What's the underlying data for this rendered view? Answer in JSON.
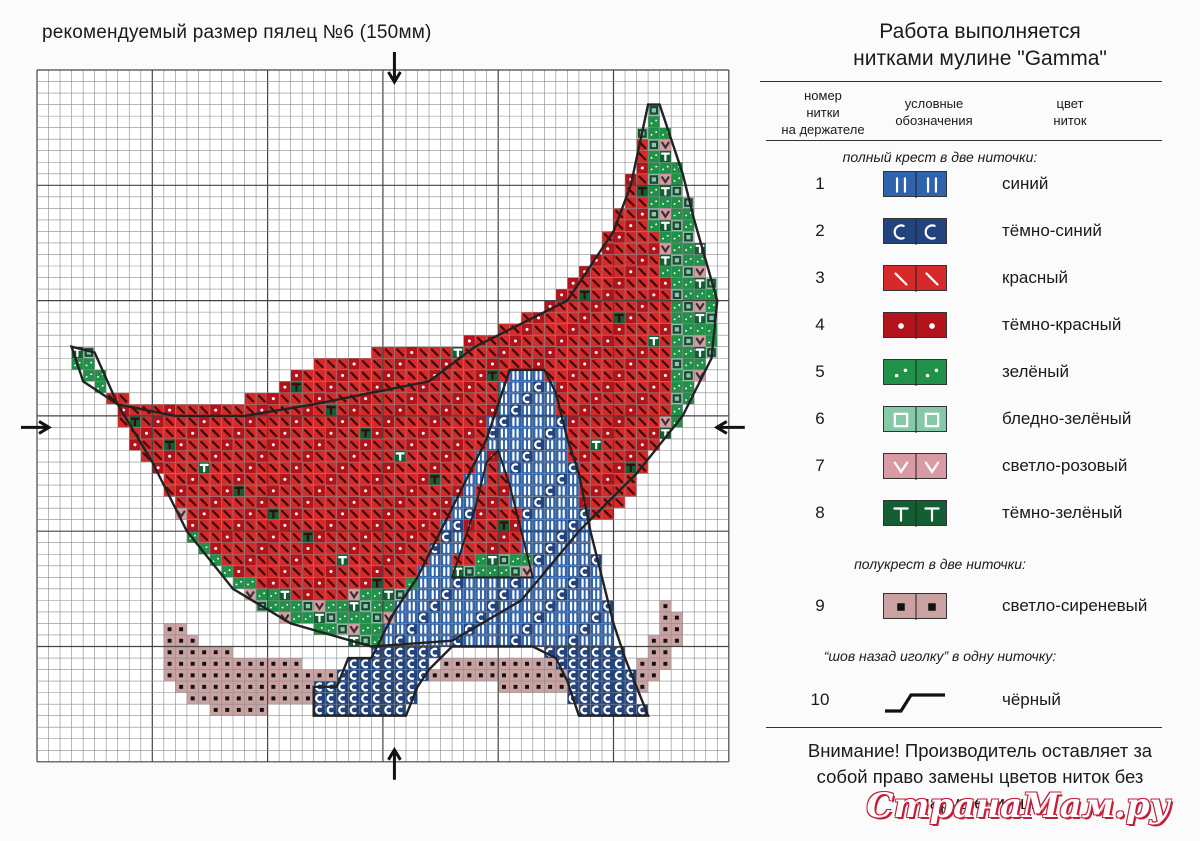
{
  "hoop_note": "рекомендуемый размер пялец №6 (150мм)",
  "legend": {
    "title_line1": "Работа выполняется",
    "title_line2": "нитками мулине \"Gamma\"",
    "headers": {
      "number": [
        "номер",
        "нитки",
        "на держателе"
      ],
      "symbol": [
        "условные",
        "обозначения"
      ],
      "color": [
        "цвет",
        "ниток"
      ]
    },
    "section_full": "полный крест в две ниточки:",
    "section_half": "полукрест в две ниточки:",
    "section_back": "“шов назад иголку” в одну ниточку:",
    "threads": [
      {
        "num": "1",
        "name": "синий",
        "bg": "#2f63ad",
        "symbol": "bar"
      },
      {
        "num": "2",
        "name": "тёмно-синий",
        "bg": "#21437e",
        "symbol": "moon"
      },
      {
        "num": "3",
        "name": "красный",
        "bg": "#d62a2a",
        "symbol": "slash"
      },
      {
        "num": "4",
        "name": "тёмно-красный",
        "bg": "#b3141c",
        "symbol": "dot"
      },
      {
        "num": "5",
        "name": "зелёный",
        "bg": "#219049",
        "symbol": "stars"
      },
      {
        "num": "6",
        "name": "бледно-зелёный",
        "bg": "#86c9a8",
        "symbol": "square"
      },
      {
        "num": "7",
        "name": "светло-розовый",
        "bg": "#d99aa3",
        "symbol": "vee"
      },
      {
        "num": "8",
        "name": "тёмно-зелёный",
        "bg": "#145e34",
        "symbol": "tee"
      },
      {
        "num": "9",
        "name": "светло-сиреневый",
        "bg": "#caa2a2",
        "symbol": "smallsq"
      },
      {
        "num": "10",
        "name": "чёрный",
        "bg": "",
        "symbol": "backstitch"
      }
    ],
    "notice": [
      "Внимание! Производитель оставляет за",
      "собой право замены цветов ниток без",
      "нарушения цв"
    ]
  },
  "watermark": "СтранаМам.ру",
  "chart_data": {
    "type": "cross-stitch-pattern",
    "grid_cols": 60,
    "grid_rows": 60,
    "stitch_colors": {
      "blue": "#2f63ad",
      "dark_blue": "#21437e",
      "red": "#d62a2a",
      "dark_red": "#b3141c",
      "green": "#219049",
      "pale_green": "#86c9a8",
      "light_pink": "#d99aa3",
      "dark_green": "#145e34",
      "light_lilac": "#caa2a2",
      "outline": "#222222"
    }
  }
}
